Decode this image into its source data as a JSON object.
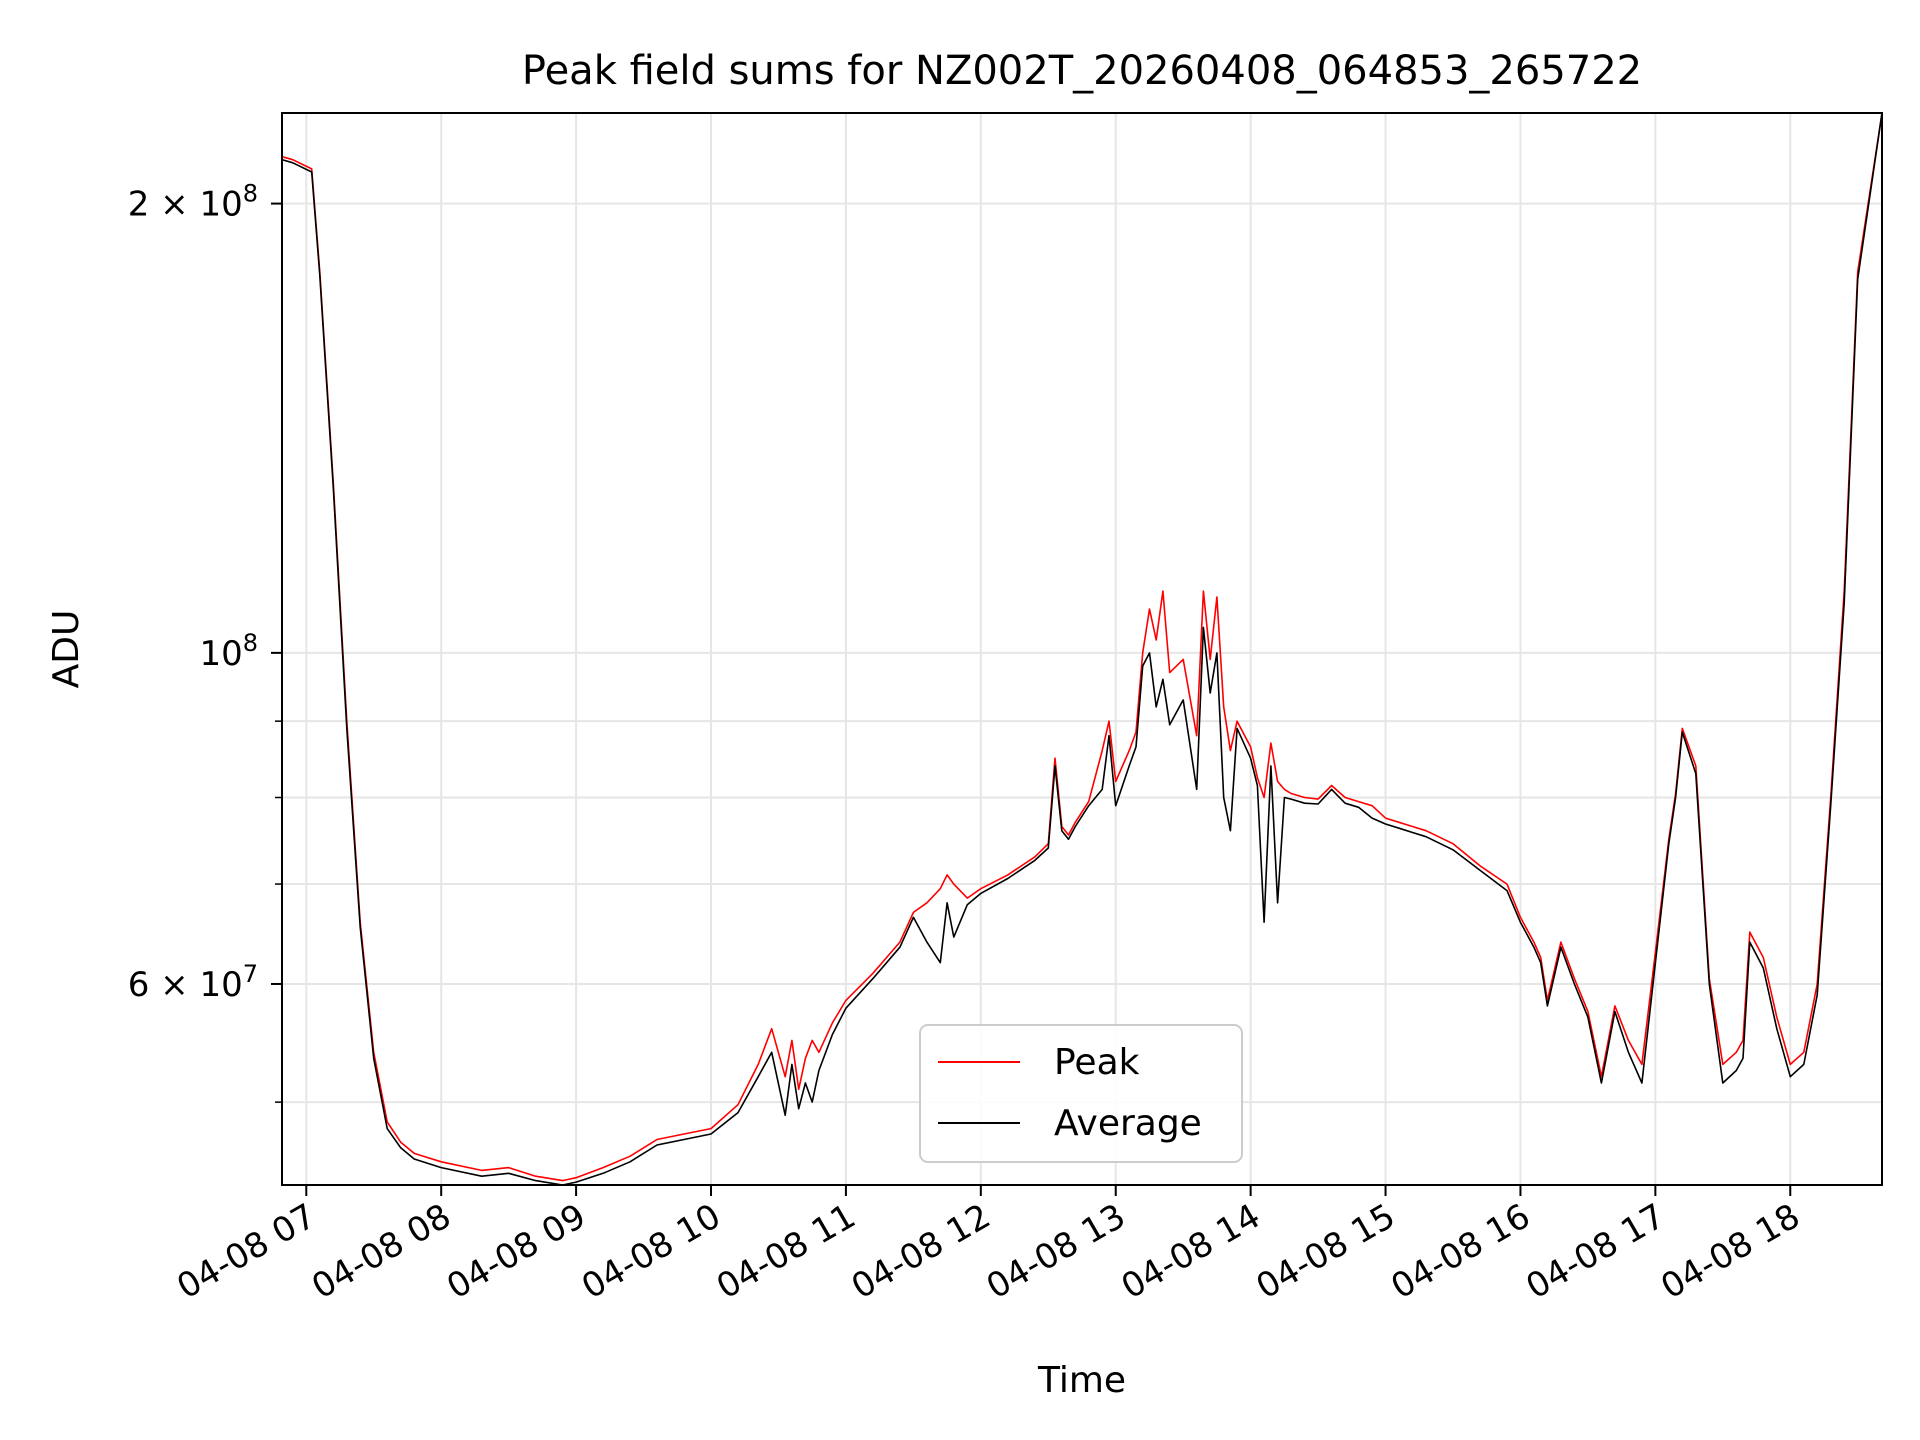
{
  "chart_data": {
    "type": "line",
    "title": "Peak field sums for NZ002T_20260408_064853_265722",
    "xlabel": "Time",
    "ylabel": "ADU",
    "yscale": "log",
    "xlim": [
      6.82,
      18.68
    ],
    "ylim": [
      44000000,
      230000000
    ],
    "grid": true,
    "legend_position": "lower-center",
    "x_unit": "hours since 2026-04-08 00:00",
    "x_ticks": [
      7,
      8,
      9,
      10,
      11,
      12,
      13,
      14,
      15,
      16,
      17,
      18
    ],
    "x_tick_labels": [
      "04-08 07",
      "04-08 08",
      "04-08 09",
      "04-08 10",
      "04-08 11",
      "04-08 12",
      "04-08 13",
      "04-08 14",
      "04-08 15",
      "04-08 16",
      "04-08 17",
      "04-08 18"
    ],
    "y_major_ticks": [
      {
        "value": 200000000,
        "mantissa": "2",
        "exponent": "8"
      },
      {
        "value": 100000000,
        "mantissa": "",
        "exponent": "8"
      },
      {
        "value": 60000000,
        "mantissa": "6",
        "exponent": "7"
      }
    ],
    "y_minor_ticks": [
      50000000,
      70000000,
      80000000,
      90000000
    ],
    "series": [
      {
        "name": "Peak",
        "color": "#ff0000",
        "x": [
          6.82,
          6.9,
          7.04,
          7.1,
          7.2,
          7.3,
          7.4,
          7.5,
          7.6,
          7.7,
          7.8,
          8.0,
          8.3,
          8.5,
          8.7,
          8.9,
          9.0,
          9.2,
          9.4,
          9.6,
          9.8,
          10.0,
          10.2,
          10.35,
          10.45,
          10.55,
          10.6,
          10.65,
          10.7,
          10.75,
          10.8,
          10.9,
          11.0,
          11.2,
          11.4,
          11.5,
          11.6,
          11.7,
          11.75,
          11.8,
          11.9,
          12.0,
          12.2,
          12.4,
          12.5,
          12.55,
          12.6,
          12.65,
          12.7,
          12.8,
          12.9,
          12.95,
          13.0,
          13.1,
          13.15,
          13.2,
          13.25,
          13.3,
          13.35,
          13.4,
          13.5,
          13.6,
          13.65,
          13.7,
          13.75,
          13.8,
          13.85,
          13.9,
          14.0,
          14.05,
          14.1,
          14.15,
          14.2,
          14.25,
          14.3,
          14.4,
          14.5,
          14.6,
          14.7,
          14.8,
          14.9,
          15.0,
          15.1,
          15.2,
          15.3,
          15.5,
          15.7,
          15.9,
          16.0,
          16.1,
          16.15,
          16.2,
          16.3,
          16.4,
          16.5,
          16.6,
          16.7,
          16.8,
          16.9,
          17.0,
          17.1,
          17.15,
          17.2,
          17.3,
          17.4,
          17.5,
          17.6,
          17.65,
          17.7,
          17.8,
          17.9,
          18.0,
          18.1,
          18.2,
          18.3,
          18.4,
          18.5,
          18.68
        ],
        "y": [
          215000000,
          214000000,
          211000000,
          180000000,
          130000000,
          90000000,
          66000000,
          54000000,
          48500000,
          47000000,
          46200000,
          45600000,
          45000000,
          45200000,
          44600000,
          44300000,
          44500000,
          45200000,
          46000000,
          47200000,
          47600000,
          48000000,
          49800000,
          53000000,
          56000000,
          52000000,
          55000000,
          51000000,
          53500000,
          55000000,
          54000000,
          56500000,
          58500000,
          61000000,
          64000000,
          67000000,
          68000000,
          69500000,
          71000000,
          70000000,
          68500000,
          69500000,
          71000000,
          73000000,
          74500000,
          85000000,
          76500000,
          75500000,
          77000000,
          79500000,
          86000000,
          90000000,
          82000000,
          86000000,
          88500000,
          100000000,
          107000000,
          102000000,
          110000000,
          97000000,
          99000000,
          88000000,
          110000000,
          99000000,
          109000000,
          92000000,
          86000000,
          90000000,
          86500000,
          82500000,
          80000000,
          87000000,
          82000000,
          81000000,
          80500000,
          80000000,
          79800000,
          81500000,
          80000000,
          79500000,
          79000000,
          77500000,
          77000000,
          76500000,
          76000000,
          74500000,
          72000000,
          70000000,
          66500000,
          64000000,
          62500000,
          58500000,
          64000000,
          60500000,
          57500000,
          52000000,
          58000000,
          55000000,
          53000000,
          63000000,
          75000000,
          80500000,
          89000000,
          84000000,
          60500000,
          53000000,
          54000000,
          55000000,
          65000000,
          62500000,
          57000000,
          53000000,
          54000000,
          60000000,
          80000000,
          110000000,
          180000000,
          230000000
        ]
      },
      {
        "name": "Average",
        "color": "#000000",
        "x": [
          6.82,
          6.9,
          7.04,
          7.1,
          7.2,
          7.3,
          7.4,
          7.5,
          7.6,
          7.7,
          7.8,
          8.0,
          8.3,
          8.5,
          8.7,
          8.9,
          9.0,
          9.2,
          9.4,
          9.6,
          9.8,
          10.0,
          10.2,
          10.35,
          10.45,
          10.55,
          10.6,
          10.65,
          10.7,
          10.75,
          10.8,
          10.9,
          11.0,
          11.2,
          11.4,
          11.5,
          11.6,
          11.7,
          11.75,
          11.8,
          11.9,
          12.0,
          12.2,
          12.4,
          12.5,
          12.55,
          12.6,
          12.65,
          12.7,
          12.8,
          12.9,
          12.95,
          13.0,
          13.1,
          13.15,
          13.2,
          13.25,
          13.3,
          13.35,
          13.4,
          13.5,
          13.6,
          13.65,
          13.7,
          13.75,
          13.8,
          13.85,
          13.9,
          14.0,
          14.05,
          14.1,
          14.15,
          14.2,
          14.25,
          14.3,
          14.4,
          14.5,
          14.6,
          14.7,
          14.8,
          14.9,
          15.0,
          15.1,
          15.2,
          15.3,
          15.5,
          15.7,
          15.9,
          16.0,
          16.1,
          16.15,
          16.2,
          16.3,
          16.4,
          16.5,
          16.6,
          16.7,
          16.8,
          16.9,
          17.0,
          17.1,
          17.15,
          17.2,
          17.3,
          17.4,
          17.5,
          17.6,
          17.65,
          17.7,
          17.8,
          17.9,
          18.0,
          18.1,
          18.2,
          18.3,
          18.4,
          18.5,
          18.68
        ],
        "y": [
          214000000,
          213000000,
          210000000,
          179000000,
          129000000,
          89000000,
          65500000,
          53500000,
          48000000,
          46600000,
          45800000,
          45200000,
          44600000,
          44800000,
          44300000,
          44000000,
          44200000,
          44800000,
          45600000,
          46800000,
          47200000,
          47600000,
          49200000,
          52000000,
          54000000,
          49000000,
          53000000,
          49500000,
          51500000,
          50000000,
          52500000,
          55500000,
          57800000,
          60500000,
          63500000,
          66500000,
          64000000,
          62000000,
          68000000,
          64500000,
          67800000,
          69000000,
          70600000,
          72600000,
          74000000,
          84000000,
          76000000,
          75000000,
          76500000,
          79000000,
          81000000,
          88000000,
          79000000,
          84000000,
          86500000,
          98000000,
          100000000,
          92000000,
          96000000,
          89500000,
          93000000,
          81000000,
          104000000,
          94000000,
          100000000,
          80000000,
          76000000,
          89000000,
          85000000,
          81500000,
          66000000,
          84000000,
          68000000,
          80000000,
          79800000,
          79300000,
          79200000,
          81000000,
          79300000,
          78800000,
          77500000,
          76800000,
          76300000,
          75800000,
          75300000,
          73800000,
          71500000,
          69300000,
          66000000,
          63500000,
          62000000,
          58000000,
          63500000,
          60000000,
          57000000,
          51500000,
          57500000,
          54000000,
          51500000,
          62000000,
          74500000,
          80000000,
          88500000,
          83000000,
          60000000,
          51500000,
          52500000,
          53500000,
          64000000,
          61500000,
          56000000,
          52000000,
          53000000,
          59000000,
          79000000,
          108000000,
          178000000,
          230000000
        ]
      }
    ]
  }
}
